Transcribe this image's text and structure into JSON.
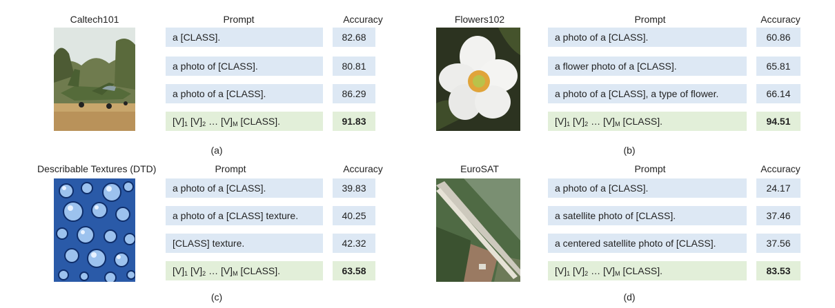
{
  "headers": {
    "prompt": "Prompt",
    "accuracy": "Accuracy"
  },
  "panels": [
    {
      "dataset": "Caltech101",
      "caption": "(a)",
      "rows": [
        {
          "prompt": "a [CLASS].",
          "accuracy": "82.68"
        },
        {
          "prompt": "a photo of [CLASS].",
          "accuracy": "80.81"
        },
        {
          "prompt": "a photo of a [CLASS].",
          "accuracy": "86.29"
        },
        {
          "prompt_learned": "[V]1 [V]2 … [V]M [CLASS].",
          "accuracy": "91.83"
        }
      ]
    },
    {
      "dataset": "Flowers102",
      "caption": "(b)",
      "rows": [
        {
          "prompt": "a photo of a [CLASS].",
          "accuracy": "60.86"
        },
        {
          "prompt": "a flower photo of a [CLASS].",
          "accuracy": "65.81"
        },
        {
          "prompt": "a photo of a [CLASS], a type of flower.",
          "accuracy": "66.14"
        },
        {
          "prompt_learned": "[V]1 [V]2 … [V]M [CLASS].",
          "accuracy": "94.51"
        }
      ]
    },
    {
      "dataset": "Describable Textures (DTD)",
      "caption": "(c)",
      "rows": [
        {
          "prompt": "a photo of a [CLASS].",
          "accuracy": "39.83"
        },
        {
          "prompt": "a photo of a [CLASS] texture.",
          "accuracy": "40.25"
        },
        {
          "prompt": "[CLASS] texture.",
          "accuracy": "42.32"
        },
        {
          "prompt_learned": "[V]1 [V]2 … [V]M [CLASS].",
          "accuracy": "63.58"
        }
      ]
    },
    {
      "dataset": "EuroSAT",
      "caption": "(d)",
      "rows": [
        {
          "prompt": "a photo of a [CLASS].",
          "accuracy": "24.17"
        },
        {
          "prompt": "a satellite photo of [CLASS].",
          "accuracy": "37.46"
        },
        {
          "prompt": "a centered satellite photo of [CLASS].",
          "accuracy": "37.56"
        },
        {
          "prompt_learned": "[V]1 [V]2 … [V]M [CLASS].",
          "accuracy": "83.53"
        }
      ]
    }
  ],
  "learned_prompt_parts": {
    "v": "[V]",
    "sub1": "1",
    "sub2": "2",
    "ellipsis": "…",
    "subM": "M",
    "class": "[CLASS]."
  }
}
